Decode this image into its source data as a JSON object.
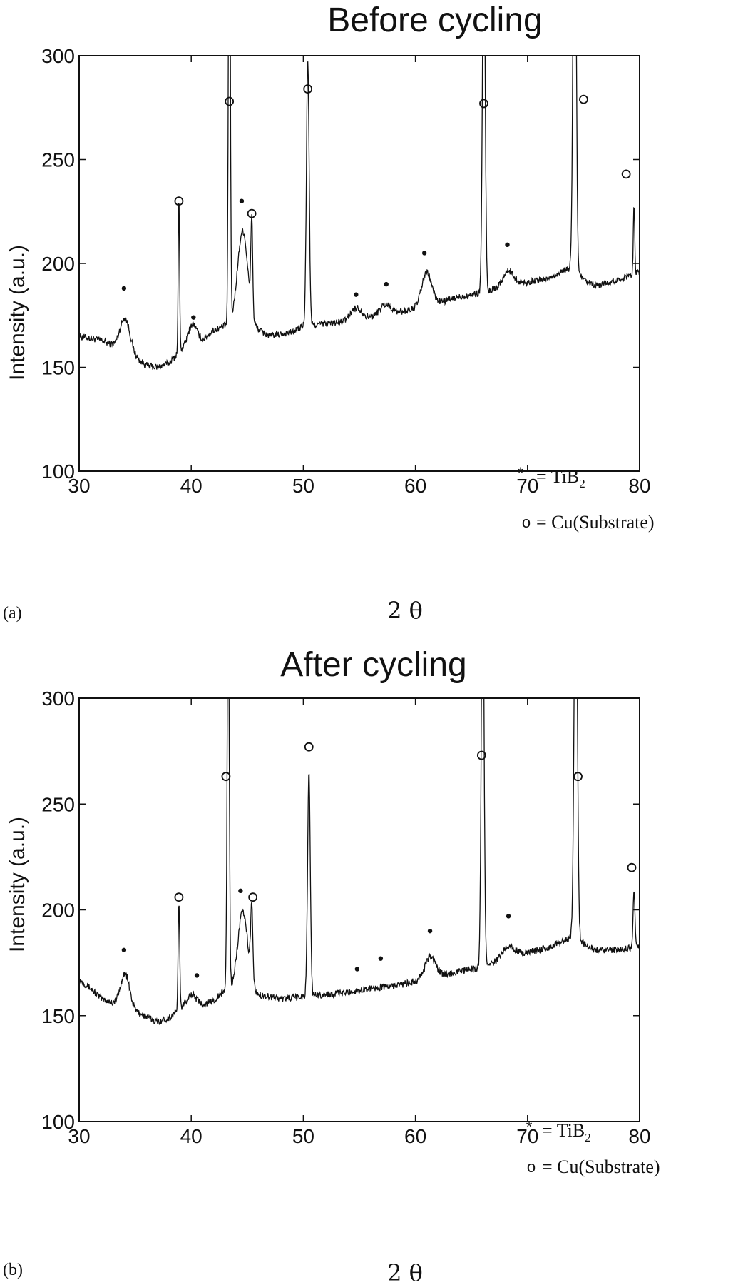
{
  "chart_data": [
    {
      "type": "line",
      "panel_label": "(a)",
      "title": "Before cycling",
      "xlabel": "2 θ",
      "ylabel": "Intensity (a.u.)",
      "xlim": [
        30,
        80
      ],
      "ylim": [
        100,
        300
      ],
      "xticks": [
        30,
        40,
        50,
        60,
        70,
        80
      ],
      "yticks": [
        100,
        150,
        200,
        250,
        300
      ],
      "grid": false,
      "legend": {
        "position": "bottom-right",
        "entries": [
          {
            "symbol": "*",
            "label": "= TiB",
            "sub": "2"
          },
          {
            "symbol": "o",
            "label": "= Cu(Substrate)",
            "sub": ""
          }
        ]
      },
      "series": [
        {
          "baseline": [
            [
              30,
              165
            ],
            [
              32,
              163
            ],
            [
              34,
              158
            ],
            [
              36,
              151
            ],
            [
              37,
              150
            ],
            [
              38,
              152
            ],
            [
              39,
              158
            ],
            [
              41,
              163
            ],
            [
              42,
              168
            ],
            [
              43,
              170
            ],
            [
              44,
              172
            ],
            [
              46,
              168
            ],
            [
              47,
              165
            ],
            [
              49,
              167
            ],
            [
              50,
              170
            ],
            [
              52,
              171
            ],
            [
              54,
              172
            ],
            [
              56,
              174
            ],
            [
              58,
              176
            ],
            [
              60,
              178
            ],
            [
              62,
              181
            ],
            [
              64,
              184
            ],
            [
              66,
              186
            ],
            [
              68,
              189
            ],
            [
              70,
              191
            ],
            [
              72,
              193
            ],
            [
              73,
              196
            ],
            [
              74,
              198
            ],
            [
              75,
              192
            ],
            [
              76,
              189
            ],
            [
              78,
              192
            ],
            [
              80,
              196
            ]
          ],
          "peaks": [
            {
              "x": 34.1,
              "h": 16,
              "w": 0.45
            },
            {
              "x": 38.9,
              "h": 75,
              "w": 0.06
            },
            {
              "x": 40.1,
              "h": 10,
              "w": 0.4
            },
            {
              "x": 43.4,
              "h": 260,
              "w": 0.08
            },
            {
              "x": 44.6,
              "h": 45,
              "w": 0.45
            },
            {
              "x": 45.4,
              "h": 46,
              "w": 0.08
            },
            {
              "x": 50.4,
              "h": 128,
              "w": 0.12
            },
            {
              "x": 54.7,
              "h": 6,
              "w": 0.5
            },
            {
              "x": 57.3,
              "h": 5,
              "w": 0.5
            },
            {
              "x": 61.0,
              "h": 16,
              "w": 0.45
            },
            {
              "x": 66.1,
              "h": 180,
              "w": 0.12
            },
            {
              "x": 68.3,
              "h": 7,
              "w": 0.5
            },
            {
              "x": 74.2,
              "h": 240,
              "w": 0.13
            },
            {
              "x": 79.5,
              "h": 35,
              "w": 0.06
            }
          ]
        }
      ],
      "annotations": [
        {
          "symbol": "*",
          "x": 34.0,
          "y": 188
        },
        {
          "symbol": "o",
          "x": 38.9,
          "y": 230
        },
        {
          "symbol": "*",
          "x": 40.2,
          "y": 174
        },
        {
          "symbol": "o",
          "x": 43.4,
          "y": 278
        },
        {
          "symbol": "*",
          "x": 44.5,
          "y": 230
        },
        {
          "symbol": "o",
          "x": 45.4,
          "y": 224
        },
        {
          "symbol": "o",
          "x": 50.4,
          "y": 284
        },
        {
          "symbol": "*",
          "x": 54.7,
          "y": 185
        },
        {
          "symbol": "*",
          "x": 57.4,
          "y": 190
        },
        {
          "symbol": "*",
          "x": 60.8,
          "y": 205
        },
        {
          "symbol": "o",
          "x": 66.1,
          "y": 277
        },
        {
          "symbol": "*",
          "x": 68.2,
          "y": 209
        },
        {
          "symbol": "o",
          "x": 75.0,
          "y": 279
        },
        {
          "symbol": "o",
          "x": 78.8,
          "y": 243
        }
      ]
    },
    {
      "type": "line",
      "panel_label": "(b)",
      "title": "After cycling",
      "xlabel": "2 θ",
      "ylabel": "Intensity (a.u.)",
      "xlim": [
        30,
        80
      ],
      "ylim": [
        100,
        300
      ],
      "xticks": [
        30,
        40,
        50,
        60,
        70,
        80
      ],
      "yticks": [
        100,
        150,
        200,
        250,
        300
      ],
      "grid": false,
      "legend": {
        "position": "bottom-right",
        "entries": [
          {
            "symbol": "*",
            "label": "= TiB",
            "sub": "2"
          },
          {
            "symbol": "o",
            "label": "= Cu(Substrate)",
            "sub": ""
          }
        ]
      },
      "series": [
        {
          "baseline": [
            [
              30,
              167
            ],
            [
              31,
              163
            ],
            [
              32,
              158
            ],
            [
              33,
              156
            ],
            [
              35,
              152
            ],
            [
              37,
              147
            ],
            [
              38,
              149
            ],
            [
              39,
              153
            ],
            [
              41,
              155
            ],
            [
              42,
              157
            ],
            [
              43,
              162
            ],
            [
              46,
              160
            ],
            [
              48,
              158
            ],
            [
              50,
              159
            ],
            [
              52,
              160
            ],
            [
              54,
              161
            ],
            [
              56,
              163
            ],
            [
              58,
              164
            ],
            [
              60,
              166
            ],
            [
              62,
              169
            ],
            [
              64,
              171
            ],
            [
              66,
              173
            ],
            [
              68,
              177
            ],
            [
              70,
              180
            ],
            [
              72,
              182
            ],
            [
              73,
              185
            ],
            [
              74,
              187
            ],
            [
              75,
              184
            ],
            [
              76,
              181
            ],
            [
              78,
              181
            ],
            [
              80,
              183
            ]
          ],
          "peaks": [
            {
              "x": 34.1,
              "h": 16,
              "w": 0.4
            },
            {
              "x": 38.9,
              "h": 50,
              "w": 0.07
            },
            {
              "x": 40.0,
              "h": 6,
              "w": 0.45
            },
            {
              "x": 43.3,
              "h": 200,
              "w": 0.09
            },
            {
              "x": 44.6,
              "h": 38,
              "w": 0.45
            },
            {
              "x": 45.4,
              "h": 35,
              "w": 0.1
            },
            {
              "x": 50.5,
              "h": 106,
              "w": 0.12
            },
            {
              "x": 61.3,
              "h": 10,
              "w": 0.45
            },
            {
              "x": 66.0,
              "h": 200,
              "w": 0.12
            },
            {
              "x": 68.3,
              "h": 6,
              "w": 0.5
            },
            {
              "x": 74.3,
              "h": 200,
              "w": 0.14
            },
            {
              "x": 79.5,
              "h": 26,
              "w": 0.08
            }
          ]
        }
      ],
      "annotations": [
        {
          "symbol": "*",
          "x": 34.0,
          "y": 181
        },
        {
          "symbol": "o",
          "x": 38.9,
          "y": 206
        },
        {
          "symbol": "*",
          "x": 40.5,
          "y": 169
        },
        {
          "symbol": "o",
          "x": 43.1,
          "y": 263
        },
        {
          "symbol": "*",
          "x": 44.4,
          "y": 209
        },
        {
          "symbol": "o",
          "x": 45.5,
          "y": 206
        },
        {
          "symbol": "o",
          "x": 50.5,
          "y": 277
        },
        {
          "symbol": "*",
          "x": 54.8,
          "y": 172
        },
        {
          "symbol": "*",
          "x": 56.9,
          "y": 177
        },
        {
          "symbol": "*",
          "x": 61.3,
          "y": 190
        },
        {
          "symbol": "o",
          "x": 65.9,
          "y": 273
        },
        {
          "symbol": "*",
          "x": 68.3,
          "y": 197
        },
        {
          "symbol": "o",
          "x": 74.5,
          "y": 263
        },
        {
          "symbol": "o",
          "x": 79.3,
          "y": 220
        }
      ]
    }
  ]
}
